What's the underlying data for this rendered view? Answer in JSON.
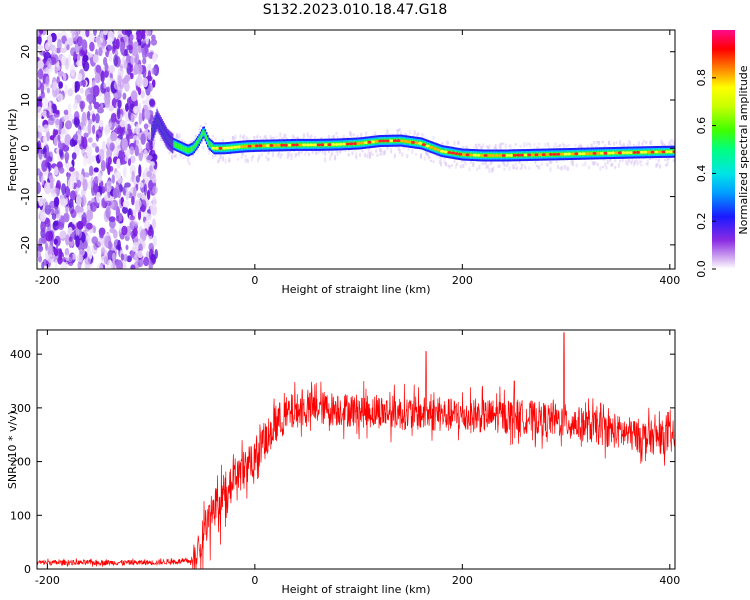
{
  "title": "S132.2023.010.18.47.G18",
  "chart_data": [
    {
      "type": "heatmap",
      "xlabel": "Height of straight line (km)",
      "ylabel": "Frequency (Hz)",
      "xlim": [
        -210,
        405
      ],
      "ylim": [
        -25,
        24.5
      ],
      "xticks": [
        -200,
        0,
        200,
        400
      ],
      "yticks": [
        -20,
        -10,
        0,
        10,
        20
      ],
      "colorbar": {
        "label": "Normalized spectral amplitude",
        "range": [
          0,
          1
        ],
        "ticks": [
          "0.0",
          "0.2",
          "0.4",
          "0.6",
          "0.8"
        ],
        "tick_values": [
          0,
          0.2,
          0.4,
          0.6,
          0.8
        ]
      },
      "ridge": {
        "x": [
          -100,
          -95,
          -90,
          -85,
          -80,
          -75,
          -70,
          -65,
          -60,
          -55,
          -50,
          -45,
          -40,
          -30,
          -20,
          -10,
          0,
          20,
          40,
          60,
          80,
          100,
          120,
          140,
          160,
          170,
          180,
          200,
          220,
          240,
          260,
          280,
          300,
          320,
          340,
          360,
          380,
          405
        ],
        "y": [
          3,
          6,
          4,
          2,
          1,
          0.5,
          0,
          -0.5,
          0,
          1.5,
          3.5,
          1,
          0,
          0,
          0.2,
          0.4,
          0.5,
          0.6,
          0.7,
          0.7,
          0.8,
          1.0,
          1.5,
          1.6,
          1.0,
          0.2,
          -0.6,
          -1.3,
          -1.5,
          -1.5,
          -1.4,
          -1.3,
          -1.2,
          -1.1,
          -1.0,
          -0.9,
          -0.8,
          -0.7
        ]
      },
      "noise_region": [
        -210,
        -95
      ]
    },
    {
      "type": "line",
      "xlabel": "Height of straight line (km)",
      "ylabel": "SNR (10 * v/v)",
      "xlim": [
        -210,
        405
      ],
      "ylim": [
        0,
        445
      ],
      "xticks": [
        -200,
        0,
        200,
        400
      ],
      "yticks": [
        0,
        100,
        200,
        300,
        400
      ],
      "color": "#ff0000",
      "envelope": {
        "x": [
          -210,
          -100,
          -60,
          -50,
          -40,
          -30,
          -20,
          -10,
          0,
          10,
          20,
          30,
          40,
          60,
          100,
          150,
          200,
          250,
          300,
          350,
          380,
          405
        ],
        "y": [
          12,
          12,
          15,
          70,
          110,
          140,
          170,
          185,
          210,
          245,
          270,
          285,
          295,
          300,
          295,
          290,
          285,
          285,
          275,
          255,
          245,
          245
        ]
      },
      "spikes": [
        {
          "x": 250,
          "y": 350
        },
        {
          "x": 298,
          "y": 440
        },
        {
          "x": 165,
          "y": 405
        }
      ]
    }
  ]
}
